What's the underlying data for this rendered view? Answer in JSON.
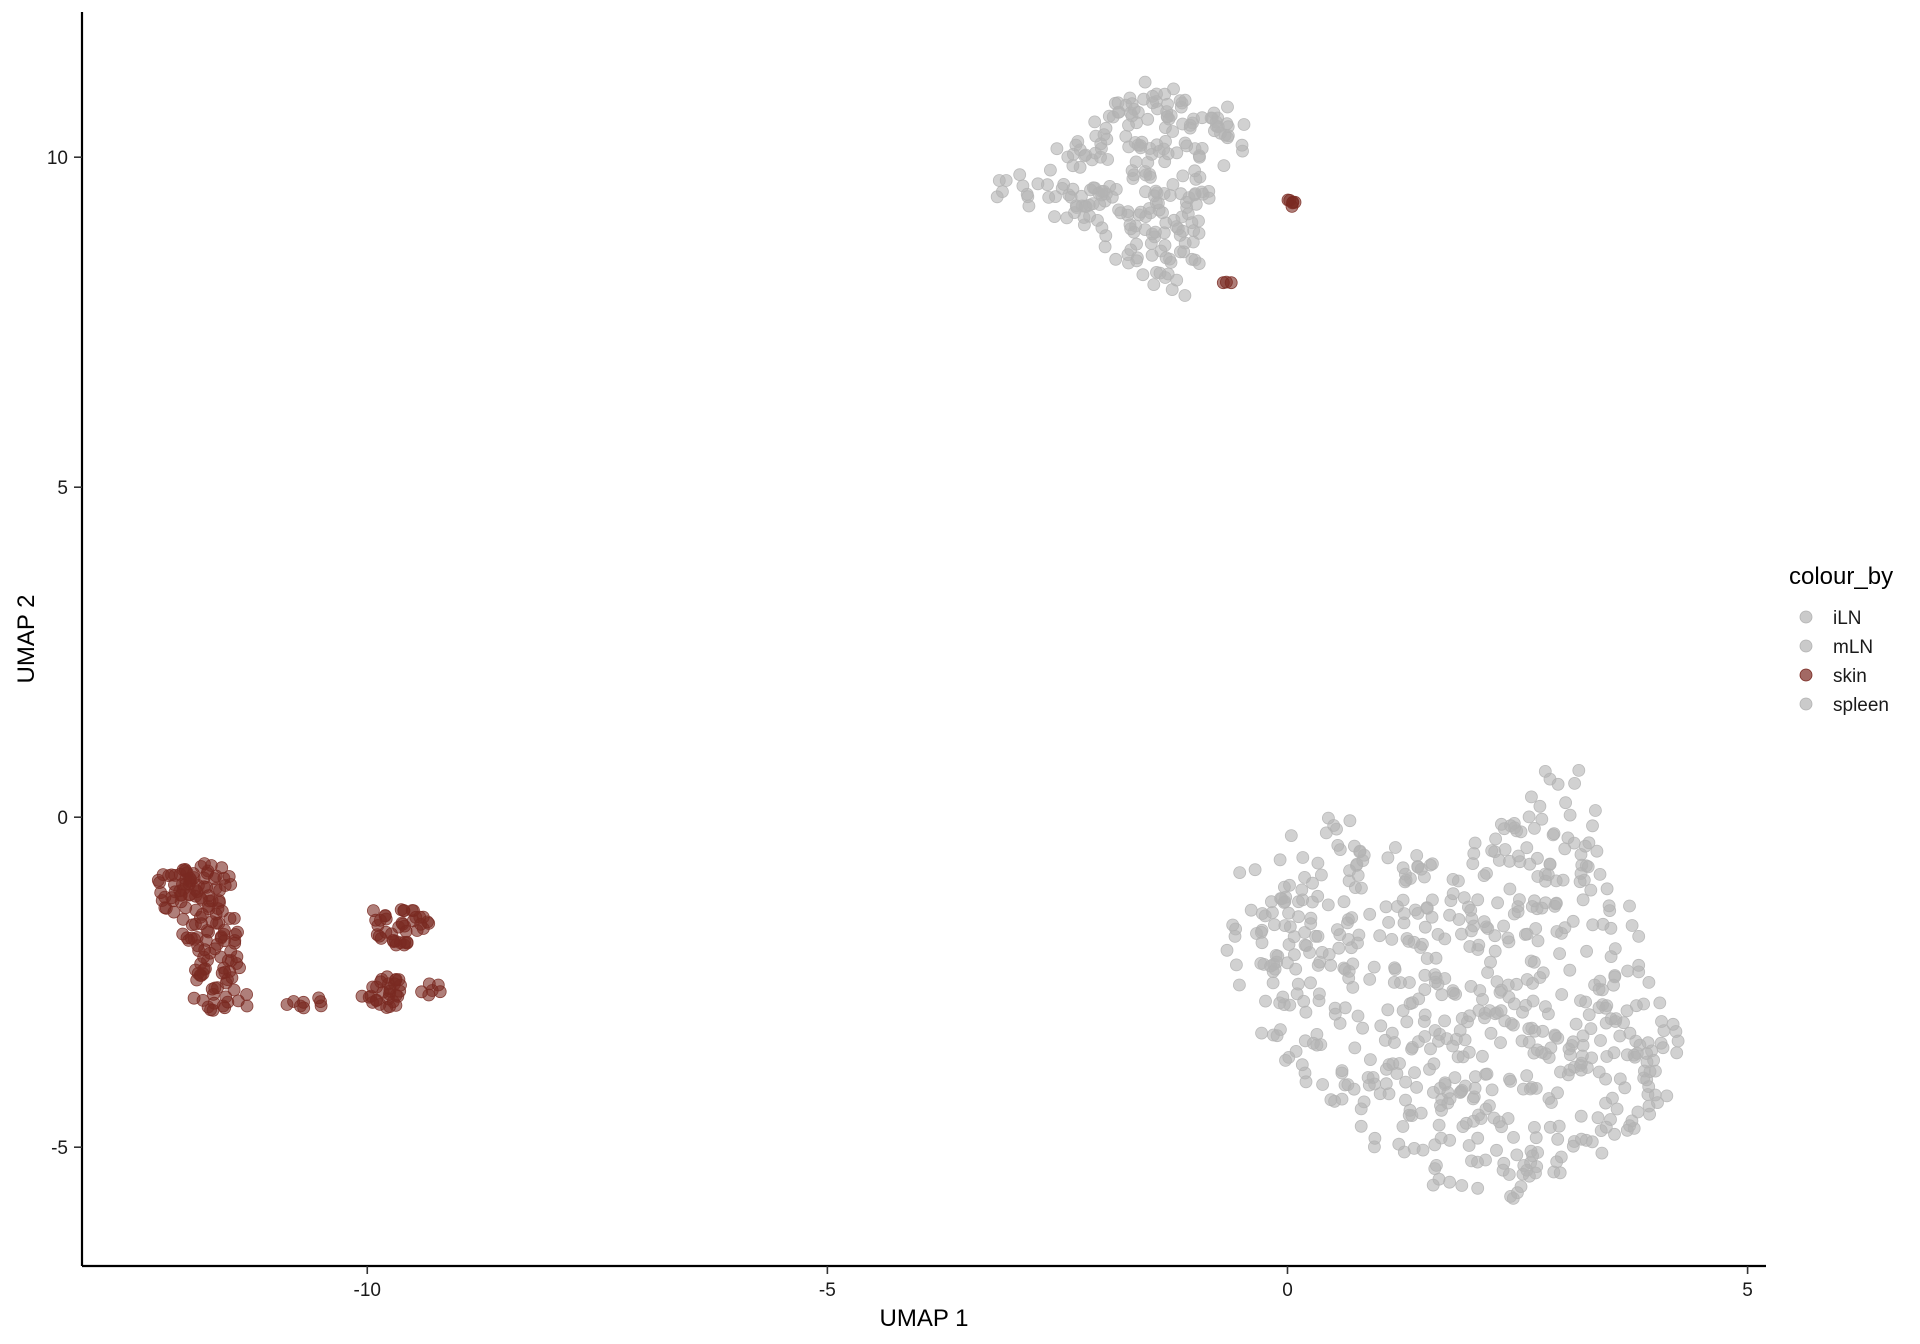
{
  "chart_data": {
    "type": "scatter",
    "xlabel": "UMAP 1",
    "ylabel": "UMAP 2",
    "xlim": [
      -13.1,
      5.2
    ],
    "ylim": [
      -6.8,
      12.2
    ],
    "xticks": [
      -10,
      -5,
      0,
      5
    ],
    "xtick_labels": [
      "-10",
      "-5",
      "0",
      "5"
    ],
    "yticks": [
      -5,
      0,
      5,
      10
    ],
    "ytick_labels": [
      "-5",
      "0",
      "5",
      "10"
    ],
    "grid": false,
    "legend": {
      "title": "colour_by",
      "position": "right",
      "entries": [
        {
          "label": "iLN",
          "color": "#b3b3b3"
        },
        {
          "label": "mLN",
          "color": "#b3b3b3"
        },
        {
          "label": "skin",
          "color": "#7a2a22"
        },
        {
          "label": "spleen",
          "color": "#b3b3b3"
        }
      ]
    },
    "colors": {
      "highlight": "#7a2a22",
      "other": "#b3b3b3"
    },
    "series": [
      {
        "name": "iLN",
        "cluster_outlines": [
          {
            "poly": [
              [
                -3.5,
                9.5
              ],
              [
                -2.8,
                9.8
              ],
              [
                -2.4,
                10.4
              ],
              [
                -2.2,
                10.6
              ],
              [
                -1.5,
                11.2
              ],
              [
                -0.8,
                11.1
              ],
              [
                -0.4,
                10.8
              ],
              [
                -0.4,
                10.2
              ],
              [
                -0.7,
                9.5
              ],
              [
                -0.8,
                8.6
              ],
              [
                -1.0,
                8.0
              ],
              [
                -1.2,
                7.8
              ],
              [
                -1.5,
                8.0
              ],
              [
                -2.1,
                8.5
              ],
              [
                -2.3,
                9.0
              ],
              [
                -3.0,
                9.3
              ]
            ],
            "n": 140
          }
        ]
      },
      {
        "name": "mLN",
        "cluster_outlines": [
          {
            "poly": [
              [
                -0.7,
                -1.0
              ],
              [
                -0.3,
                -0.6
              ],
              [
                0.3,
                0.0
              ],
              [
                0.7,
                0.1
              ],
              [
                1.1,
                -0.3
              ],
              [
                1.9,
                -0.3
              ],
              [
                2.1,
                -0.6
              ],
              [
                2.2,
                -0.2
              ],
              [
                2.6,
                0.3
              ],
              [
                2.8,
                1.0
              ],
              [
                3.2,
                0.7
              ],
              [
                3.4,
                0.0
              ],
              [
                3.5,
                -0.6
              ],
              [
                3.8,
                -1.6
              ],
              [
                4.3,
                -2.9
              ],
              [
                4.3,
                -4.1
              ],
              [
                3.8,
                -4.7
              ],
              [
                3.0,
                -5.4
              ],
              [
                2.5,
                -5.8
              ],
              [
                1.6,
                -5.6
              ],
              [
                0.8,
                -5.2
              ],
              [
                0.2,
                -4.6
              ],
              [
                -0.2,
                -3.8
              ],
              [
                -0.5,
                -2.8
              ],
              [
                -0.7,
                -2.0
              ]
            ],
            "n": 340
          }
        ]
      },
      {
        "name": "skin",
        "cluster_outlines": [
          {
            "poly": [
              [
                -12.3,
                -0.9
              ],
              [
                -12.1,
                -0.8
              ],
              [
                -11.8,
                -0.6
              ],
              [
                -11.5,
                -0.8
              ],
              [
                -11.4,
                -1.5
              ],
              [
                -11.4,
                -2.2
              ],
              [
                -11.2,
                -2.9
              ],
              [
                -11.6,
                -3.0
              ],
              [
                -11.9,
                -2.8
              ],
              [
                -11.9,
                -2.0
              ],
              [
                -12.1,
                -1.6
              ],
              [
                -12.3,
                -1.3
              ]
            ],
            "n": 150
          },
          {
            "poly": [
              [
                -10.0,
                -1.4
              ],
              [
                -9.5,
                -1.4
              ],
              [
                -9.3,
                -1.6
              ],
              [
                -9.5,
                -1.9
              ],
              [
                -9.7,
                -2.0
              ],
              [
                -9.9,
                -1.8
              ]
            ],
            "n": 40
          },
          {
            "poly": [
              [
                -10.1,
                -2.7
              ],
              [
                -9.9,
                -2.5
              ],
              [
                -9.7,
                -2.3
              ],
              [
                -9.6,
                -2.6
              ],
              [
                -9.7,
                -2.9
              ],
              [
                -10.0,
                -2.9
              ]
            ],
            "n": 30
          },
          {
            "poly": [
              [
                -10.9,
                -2.7
              ],
              [
                -10.5,
                -2.7
              ],
              [
                -10.5,
                -2.9
              ],
              [
                -10.9,
                -2.9
              ]
            ],
            "n": 8
          },
          {
            "poly": [
              [
                -9.5,
                -2.5
              ],
              [
                -9.2,
                -2.5
              ],
              [
                -9.2,
                -2.7
              ],
              [
                -9.5,
                -2.7
              ]
            ],
            "n": 6
          },
          {
            "poly": [
              [
                0.0,
                9.4
              ],
              [
                0.1,
                9.35
              ],
              [
                0.05,
                9.2
              ],
              [
                -0.05,
                9.25
              ]
            ],
            "n": 6
          },
          {
            "poly": [
              [
                -0.7,
                8.15
              ],
              [
                -0.6,
                8.1
              ],
              [
                -0.65,
                8.0
              ],
              [
                -0.72,
                8.05
              ]
            ],
            "n": 3
          }
        ]
      },
      {
        "name": "spleen",
        "cluster_outlines": [
          {
            "poly": [
              [
                -2.6,
                9.8
              ],
              [
                -1.9,
                10.9
              ],
              [
                -1.2,
                11.0
              ],
              [
                -0.6,
                10.5
              ],
              [
                -0.8,
                9.6
              ],
              [
                -1.1,
                8.3
              ],
              [
                -1.6,
                8.1
              ],
              [
                -2.2,
                8.8
              ]
            ],
            "n": 110
          },
          {
            "poly": [
              [
                -0.4,
                -1.5
              ],
              [
                0.5,
                -0.4
              ],
              [
                1.8,
                -0.6
              ],
              [
                3.0,
                0.6
              ],
              [
                3.6,
                -1.4
              ],
              [
                4.2,
                -3.2
              ],
              [
                3.9,
                -4.8
              ],
              [
                2.6,
                -5.7
              ],
              [
                1.0,
                -5.0
              ],
              [
                -0.1,
                -3.6
              ]
            ],
            "n": 300
          }
        ]
      }
    ]
  }
}
